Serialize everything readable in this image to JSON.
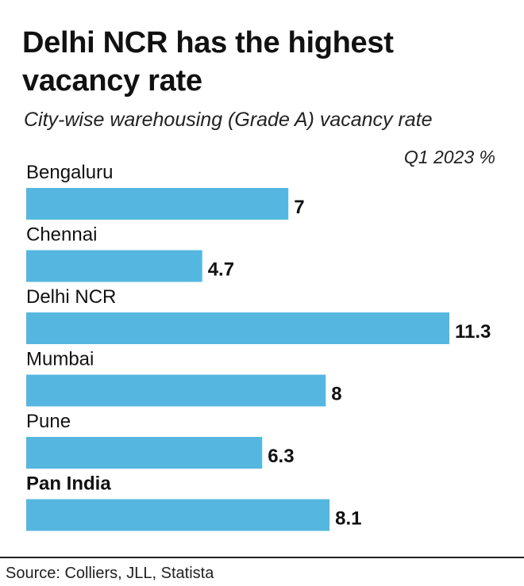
{
  "header": {
    "title": "Delhi NCR has the highest vacancy rate",
    "subtitle": "City-wise warehousing (Grade A) vacancy rate",
    "unit_label": "Q1 2023 %"
  },
  "footer": {
    "source": "Source: Colliers, JLL, Statista"
  },
  "colors": {
    "bar": "#55b7e0",
    "text": "#111111"
  },
  "chart_data": {
    "type": "bar",
    "orientation": "horizontal",
    "title": "Delhi NCR has the highest vacancy rate",
    "subtitle": "City-wise warehousing (Grade A) vacancy rate",
    "categories": [
      "Bengaluru",
      "Chennai",
      "Delhi NCR",
      "Mumbai",
      "Pune",
      "Pan India"
    ],
    "values": [
      7,
      4.7,
      11.3,
      8,
      6.3,
      8.1
    ],
    "value_labels": [
      "7",
      "4.7",
      "11.3",
      "8",
      "6.3",
      "8.1"
    ],
    "bold_categories": [
      "Pan India"
    ],
    "unit": "Q1 2023 %",
    "xlim": [
      0,
      11.3
    ],
    "grid": false,
    "legend": "none"
  }
}
